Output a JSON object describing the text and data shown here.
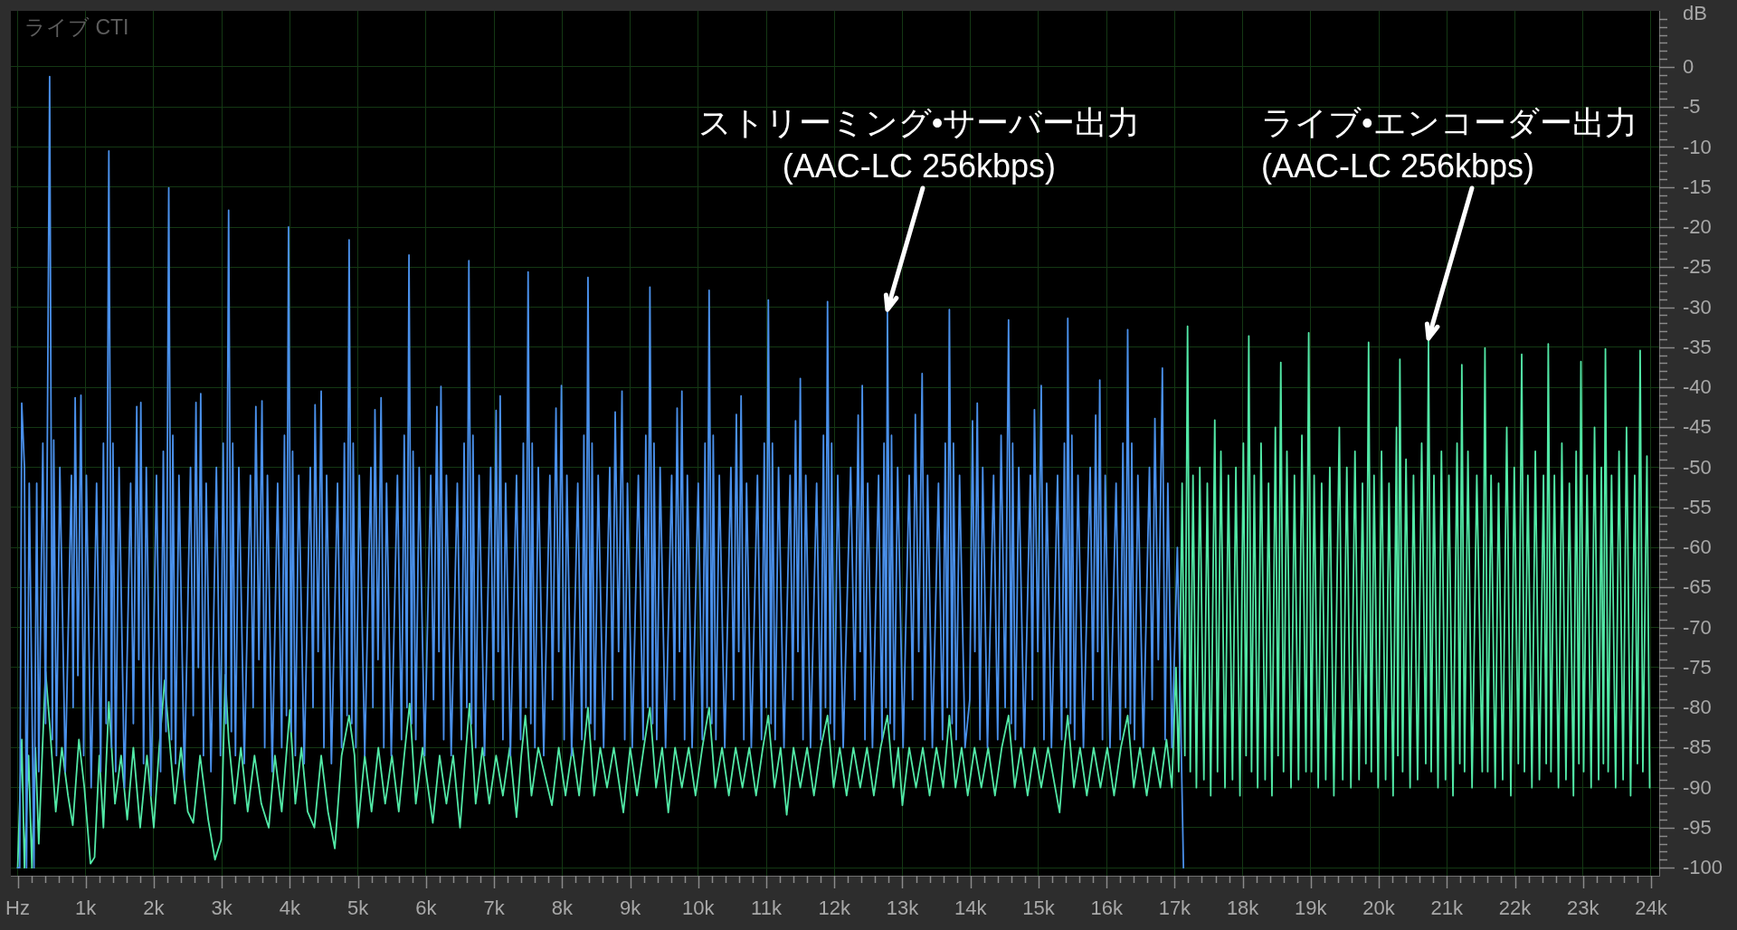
{
  "chart_data": {
    "type": "line",
    "xlim": [
      -100,
      24120
    ],
    "ylim": [
      -101,
      7
    ],
    "xticks": [
      {
        "value": 0,
        "label": "Hz"
      },
      {
        "value": 200,
        "label": null
      },
      {
        "value": 400,
        "label": null
      },
      {
        "value": 600,
        "label": null
      },
      {
        "value": 800,
        "label": null
      },
      {
        "value": 1000,
        "label": "1k"
      },
      {
        "value": 1200,
        "label": null
      },
      {
        "value": 1400,
        "label": null
      },
      {
        "value": 1600,
        "label": null
      },
      {
        "value": 1800,
        "label": null
      },
      {
        "value": 2000,
        "label": "2k"
      },
      {
        "value": 2200,
        "label": null
      },
      {
        "value": 2400,
        "label": null
      },
      {
        "value": 2600,
        "label": null
      },
      {
        "value": 2800,
        "label": null
      },
      {
        "value": 3000,
        "label": "3k"
      },
      {
        "value": 3200,
        "label": null
      },
      {
        "value": 3400,
        "label": null
      },
      {
        "value": 3600,
        "label": null
      },
      {
        "value": 3800,
        "label": null
      },
      {
        "value": 4000,
        "label": "4k"
      },
      {
        "value": 4200,
        "label": null
      },
      {
        "value": 4400,
        "label": null
      },
      {
        "value": 4600,
        "label": null
      },
      {
        "value": 4800,
        "label": null
      },
      {
        "value": 5000,
        "label": "5k"
      },
      {
        "value": 5200,
        "label": null
      },
      {
        "value": 5400,
        "label": null
      },
      {
        "value": 5600,
        "label": null
      },
      {
        "value": 5800,
        "label": null
      },
      {
        "value": 6000,
        "label": "6k"
      },
      {
        "value": 6200,
        "label": null
      },
      {
        "value": 6400,
        "label": null
      },
      {
        "value": 6600,
        "label": null
      },
      {
        "value": 6800,
        "label": null
      },
      {
        "value": 7000,
        "label": "7k"
      },
      {
        "value": 7200,
        "label": null
      },
      {
        "value": 7400,
        "label": null
      },
      {
        "value": 7600,
        "label": null
      },
      {
        "value": 7800,
        "label": null
      },
      {
        "value": 8000,
        "label": "8k"
      },
      {
        "value": 8200,
        "label": null
      },
      {
        "value": 8400,
        "label": null
      },
      {
        "value": 8600,
        "label": null
      },
      {
        "value": 8800,
        "label": null
      },
      {
        "value": 9000,
        "label": "9k"
      },
      {
        "value": 9200,
        "label": null
      },
      {
        "value": 9400,
        "label": null
      },
      {
        "value": 9600,
        "label": null
      },
      {
        "value": 9800,
        "label": null
      },
      {
        "value": 10000,
        "label": "10k"
      },
      {
        "value": 10200,
        "label": null
      },
      {
        "value": 10400,
        "label": null
      },
      {
        "value": 10600,
        "label": null
      },
      {
        "value": 10800,
        "label": null
      },
      {
        "value": 11000,
        "label": "11k"
      },
      {
        "value": 11200,
        "label": null
      },
      {
        "value": 11400,
        "label": null
      },
      {
        "value": 11600,
        "label": null
      },
      {
        "value": 11800,
        "label": null
      },
      {
        "value": 12000,
        "label": "12k"
      },
      {
        "value": 12200,
        "label": null
      },
      {
        "value": 12400,
        "label": null
      },
      {
        "value": 12600,
        "label": null
      },
      {
        "value": 12800,
        "label": null
      },
      {
        "value": 13000,
        "label": "13k"
      },
      {
        "value": 13200,
        "label": null
      },
      {
        "value": 13400,
        "label": null
      },
      {
        "value": 13600,
        "label": null
      },
      {
        "value": 13800,
        "label": null
      },
      {
        "value": 14000,
        "label": "14k"
      },
      {
        "value": 14200,
        "label": null
      },
      {
        "value": 14400,
        "label": null
      },
      {
        "value": 14600,
        "label": null
      },
      {
        "value": 14800,
        "label": null
      },
      {
        "value": 15000,
        "label": "15k"
      },
      {
        "value": 15200,
        "label": null
      },
      {
        "value": 15400,
        "label": null
      },
      {
        "value": 15600,
        "label": null
      },
      {
        "value": 15800,
        "label": null
      },
      {
        "value": 16000,
        "label": "16k"
      },
      {
        "value": 16200,
        "label": null
      },
      {
        "value": 16400,
        "label": null
      },
      {
        "value": 16600,
        "label": null
      },
      {
        "value": 16800,
        "label": null
      },
      {
        "value": 17000,
        "label": "17k"
      },
      {
        "value": 17200,
        "label": null
      },
      {
        "value": 17400,
        "label": null
      },
      {
        "value": 17600,
        "label": null
      },
      {
        "value": 17800,
        "label": null
      },
      {
        "value": 18000,
        "label": "18k"
      },
      {
        "value": 18200,
        "label": null
      },
      {
        "value": 18400,
        "label": null
      },
      {
        "value": 18600,
        "label": null
      },
      {
        "value": 18800,
        "label": null
      },
      {
        "value": 19000,
        "label": "19k"
      },
      {
        "value": 19200,
        "label": null
      },
      {
        "value": 19400,
        "label": null
      },
      {
        "value": 19600,
        "label": null
      },
      {
        "value": 19800,
        "label": null
      },
      {
        "value": 20000,
        "label": "20k"
      },
      {
        "value": 20200,
        "label": null
      },
      {
        "value": 20400,
        "label": null
      },
      {
        "value": 20600,
        "label": null
      },
      {
        "value": 20800,
        "label": null
      },
      {
        "value": 21000,
        "label": "21k"
      },
      {
        "value": 21200,
        "label": null
      },
      {
        "value": 21400,
        "label": null
      },
      {
        "value": 21600,
        "label": null
      },
      {
        "value": 21800,
        "label": null
      },
      {
        "value": 22000,
        "label": "22k"
      },
      {
        "value": 22200,
        "label": null
      },
      {
        "value": 22400,
        "label": null
      },
      {
        "value": 22600,
        "label": null
      },
      {
        "value": 22800,
        "label": null
      },
      {
        "value": 23000,
        "label": "23k"
      },
      {
        "value": 23200,
        "label": null
      },
      {
        "value": 23400,
        "label": null
      },
      {
        "value": 23600,
        "label": null
      },
      {
        "value": 23800,
        "label": null
      },
      {
        "value": 24000,
        "label": "24k"
      }
    ],
    "yticks": [
      {
        "value": 6,
        "label": null
      },
      {
        "value": 5,
        "label": null
      },
      {
        "value": 4,
        "label": null
      },
      {
        "value": 3,
        "label": null
      },
      {
        "value": 2,
        "label": null
      },
      {
        "value": 1,
        "label": null
      },
      0,
      {
        "value": -1,
        "label": null
      },
      {
        "value": -2,
        "label": null
      },
      {
        "value": -3,
        "label": null
      },
      {
        "value": -4,
        "label": null
      },
      -5,
      {
        "value": -6,
        "label": null
      },
      {
        "value": -7,
        "label": null
      },
      {
        "value": -8,
        "label": null
      },
      {
        "value": -9,
        "label": null
      },
      -10,
      {
        "value": -11,
        "label": null
      },
      {
        "value": -12,
        "label": null
      },
      {
        "value": -13,
        "label": null
      },
      {
        "value": -14,
        "label": null
      },
      -15,
      {
        "value": -16,
        "label": null
      },
      {
        "value": -17,
        "label": null
      },
      {
        "value": -18,
        "label": null
      },
      {
        "value": -19,
        "label": null
      },
      -20,
      {
        "value": -21,
        "label": null
      },
      {
        "value": -22,
        "label": null
      },
      {
        "value": -23,
        "label": null
      },
      {
        "value": -24,
        "label": null
      },
      -25,
      {
        "value": -26,
        "label": null
      },
      {
        "value": -27,
        "label": null
      },
      {
        "value": -28,
        "label": null
      },
      {
        "value": -29,
        "label": null
      },
      -30,
      {
        "value": -31,
        "label": null
      },
      {
        "value": -32,
        "label": null
      },
      {
        "value": -33,
        "label": null
      },
      {
        "value": -34,
        "label": null
      },
      -35,
      {
        "value": -36,
        "label": null
      },
      {
        "value": -37,
        "label": null
      },
      {
        "value": -38,
        "label": null
      },
      {
        "value": -39,
        "label": null
      },
      -40,
      {
        "value": -41,
        "label": null
      },
      {
        "value": -42,
        "label": null
      },
      {
        "value": -43,
        "label": null
      },
      {
        "value": -44,
        "label": null
      },
      -45,
      {
        "value": -46,
        "label": null
      },
      {
        "value": -47,
        "label": null
      },
      {
        "value": -48,
        "label": null
      },
      {
        "value": -49,
        "label": null
      },
      -50,
      {
        "value": -51,
        "label": null
      },
      {
        "value": -52,
        "label": null
      },
      {
        "value": -53,
        "label": null
      },
      {
        "value": -54,
        "label": null
      },
      -55,
      {
        "value": -56,
        "label": null
      },
      {
        "value": -57,
        "label": null
      },
      {
        "value": -58,
        "label": null
      },
      {
        "value": -59,
        "label": null
      },
      -60,
      {
        "value": -61,
        "label": null
      },
      {
        "value": -62,
        "label": null
      },
      {
        "value": -63,
        "label": null
      },
      {
        "value": -64,
        "label": null
      },
      -65,
      {
        "value": -66,
        "label": null
      },
      {
        "value": -67,
        "label": null
      },
      {
        "value": -68,
        "label": null
      },
      {
        "value": -69,
        "label": null
      },
      -70,
      {
        "value": -71,
        "label": null
      },
      {
        "value": -72,
        "label": null
      },
      {
        "value": -73,
        "label": null
      },
      {
        "value": -74,
        "label": null
      },
      -75,
      {
        "value": -76,
        "label": null
      },
      {
        "value": -77,
        "label": null
      },
      {
        "value": -78,
        "label": null
      },
      {
        "value": -79,
        "label": null
      },
      -80,
      {
        "value": -81,
        "label": null
      },
      {
        "value": -82,
        "label": null
      },
      {
        "value": -83,
        "label": null
      },
      {
        "value": -84,
        "label": null
      },
      -85,
      {
        "value": -86,
        "label": null
      },
      {
        "value": -87,
        "label": null
      },
      {
        "value": -88,
        "label": null
      },
      {
        "value": -89,
        "label": null
      },
      -90,
      {
        "value": -91,
        "label": null
      },
      {
        "value": -92,
        "label": null
      },
      {
        "value": -93,
        "label": null
      },
      {
        "value": -94,
        "label": null
      },
      -95,
      {
        "value": -96,
        "label": null
      },
      {
        "value": -97,
        "label": null
      },
      {
        "value": -98,
        "label": null
      },
      {
        "value": -99,
        "label": null
      },
      -100
    ],
    "ylabel": "dB",
    "grid": true,
    "annotations": [
      "ライブ CTI",
      {
        "text": "ストリーミング•サーバー出力(AAC-LC 256kbps)",
        "x": 12780,
        "y": -30.3
      },
      {
        "text": "ライブ•エンコーダー出力(AAC-LC 256kbps)",
        "x": 20730,
        "y": -33.9
      }
    ],
    "series": [
      {
        "color": "#4a90ea",
        "x": [
          0,
          30,
          60,
          100,
          130,
          170,
          240,
          280,
          310,
          370,
          410,
          470,
          510,
          530,
          570,
          620,
          700,
          790,
          815,
          845,
          885,
          930,
          970,
          1010,
          1080,
          1160,
          1220,
          1260,
          1300,
          1340,
          1380,
          1400,
          1440,
          1490,
          1570,
          1660,
          1700,
          1750,
          1780,
          1810,
          1850,
          1890,
          1960,
          2040,
          2100,
          2140,
          2180,
          2220,
          2260,
          2280,
          2320,
          2370,
          2450,
          2540,
          2580,
          2620,
          2655,
          2690,
          2730,
          2770,
          2840,
          2920,
          2980,
          3020,
          3060,
          3100,
          3140,
          3160,
          3200,
          3250,
          3330,
          3420,
          3460,
          3500,
          3545,
          3590,
          3630,
          3670,
          3740,
          3820,
          3880,
          3920,
          3950,
          3980,
          4020,
          4040,
          4080,
          4130,
          4210,
          4300,
          4340,
          4370,
          4415,
          4460,
          4500,
          4540,
          4610,
          4700,
          4760,
          4800,
          4840,
          4870,
          4910,
          4930,
          4970,
          5020,
          5100,
          5190,
          5220,
          5250,
          5295,
          5340,
          5380,
          5420,
          5490,
          5580,
          5640,
          5680,
          5720,
          5750,
          5790,
          5810,
          5850,
          5900,
          5980,
          6070,
          6110,
          6160,
          6190,
          6220,
          6260,
          6300,
          6370,
          6460,
          6520,
          6560,
          6600,
          6630,
          6670,
          6690,
          6730,
          6780,
          6860,
          6950,
          6990,
          7030,
          7060,
          7090,
          7130,
          7170,
          7240,
          7330,
          7390,
          7430,
          7470,
          7500,
          7540,
          7560,
          7600,
          7650,
          7730,
          7820,
          7860,
          7910,
          7950,
          7990,
          8030,
          8070,
          8140,
          8230,
          8290,
          8320,
          8350,
          8380,
          8420,
          8440,
          8480,
          8530,
          8610,
          8700,
          8740,
          8780,
          8830,
          8880,
          8920,
          8960,
          9030,
          9120,
          9190,
          9230,
          9260,
          9290,
          9330,
          9350,
          9390,
          9440,
          9520,
          9610,
          9650,
          9690,
          9725,
          9760,
          9800,
          9840,
          9910,
          10000,
          10060,
          10100,
          10130,
          10160,
          10200,
          10220,
          10260,
          10310,
          10390,
          10480,
          10520,
          10560,
          10595,
          10630,
          10670,
          10710,
          10780,
          10870,
          10930,
          10970,
          11000,
          11030,
          11070,
          11090,
          11130,
          11180,
          11260,
          11350,
          11390,
          11430,
          11465,
          11500,
          11540,
          11580,
          11650,
          11740,
          11800,
          11840,
          11870,
          11900,
          11940,
          11960,
          12000,
          12050,
          12130,
          12240,
          12300,
          12350,
          12380,
          12410,
          12450,
          12490,
          12560,
          12650,
          12700,
          12730,
          12760,
          12780,
          12820,
          12840,
          12880,
          12930,
          13010,
          13100,
          13150,
          13190,
          13240,
          13290,
          13330,
          13370,
          13440,
          13530,
          13590,
          13630,
          13660,
          13690,
          13730,
          13750,
          13790,
          13840,
          13920,
          13990,
          14030,
          14065,
          14100,
          14140,
          14180,
          14250,
          14340,
          14400,
          14450,
          14510,
          14560,
          14600,
          14620,
          14660,
          14710,
          14790,
          14880,
          14910,
          14940,
          14990,
          15040,
          15080,
          15120,
          15190,
          15280,
          15340,
          15380,
          15410,
          15430,
          15470,
          15490,
          15530,
          15580,
          15660,
          15760,
          15800,
          15840,
          15870,
          15900,
          15940,
          15980,
          16050,
          16140,
          16200,
          16240,
          16280,
          16310,
          16350,
          16370,
          16410,
          16460,
          16540,
          16630,
          16670,
          16710,
          16760,
          16820,
          16860,
          16900,
          16960,
          17040,
          17090,
          17130
        ],
        "values": [
          -100,
          -100,
          -42,
          -50,
          -100,
          -52,
          -100,
          -52,
          -88,
          -47,
          -82,
          -1.2,
          -84,
          -46.6,
          -86,
          -50,
          -88,
          -51,
          -80,
          -41.3,
          -76,
          -41,
          -86,
          -51,
          -90,
          -52,
          -88,
          -47,
          -82,
          -10.5,
          -85,
          -47,
          -88,
          -50,
          -90,
          -52,
          -82,
          -42.4,
          -74,
          -41.9,
          -87,
          -50,
          -91,
          -51,
          -88,
          -48,
          -83,
          -15.1,
          -84,
          -46,
          -87,
          -51,
          -89,
          -50,
          -81,
          -41.9,
          -75,
          -40.8,
          -86,
          -52,
          -88,
          -50,
          -86,
          -47,
          -82,
          -17.9,
          -83,
          -47,
          -86,
          -50,
          -87,
          -51,
          -80,
          -42.4,
          -74,
          -41.7,
          -85,
          -51,
          -88,
          -52,
          -85,
          -46,
          -81,
          -20,
          -83,
          -48,
          -86,
          -51,
          -87,
          -50,
          -80,
          -42.2,
          -73,
          -40.5,
          -85,
          -51,
          -87,
          -52,
          -85,
          -47,
          -81,
          -21.6,
          -82,
          -47,
          -85,
          -51,
          -86,
          -50,
          -80,
          -42.8,
          -74,
          -41.3,
          -85,
          -52,
          -86,
          -51,
          -84,
          -46,
          -80,
          -23.5,
          -82,
          -48,
          -84,
          -50,
          -86,
          -51,
          -79,
          -42.4,
          -73,
          -39.9,
          -84,
          -51,
          -86,
          -52,
          -84,
          -47,
          -80,
          -24.2,
          -82,
          -46,
          -85,
          -51,
          -86,
          -50,
          -79,
          -42.9,
          -73,
          -41.1,
          -84,
          -52,
          -86,
          -51,
          -84,
          -47,
          -80,
          -25.6,
          -82,
          -47,
          -85,
          -50,
          -86,
          -51,
          -79,
          -42.6,
          -73,
          -39.8,
          -84,
          -51,
          -86,
          -52,
          -84,
          -46,
          -80,
          -26.3,
          -82,
          -47,
          -84,
          -51,
          -85,
          -50,
          -79,
          -43.1,
          -73,
          -40.5,
          -84,
          -52,
          -85,
          -51,
          -84,
          -46,
          -80,
          -27.5,
          -82,
          -47,
          -84,
          -50,
          -85,
          -51,
          -79,
          -42.6,
          -73,
          -40.5,
          -84,
          -51,
          -85,
          -52,
          -84,
          -47,
          -80,
          -27.9,
          -82,
          -46,
          -84,
          -51,
          -85,
          -50,
          -79,
          -43.4,
          -73,
          -41.1,
          -84,
          -52,
          -85,
          -51,
          -84,
          -47,
          -80,
          -29.1,
          -82,
          -47,
          -84,
          -50,
          -85,
          -51,
          -79,
          -44.2,
          -73,
          -38.9,
          -84,
          -51,
          -85,
          -52,
          -84,
          -46,
          -80,
          -29.3,
          -82,
          -47,
          -84,
          -51,
          -85,
          -50,
          -79,
          -43.5,
          -73,
          -39.8,
          -84,
          -52,
          -85,
          -51,
          -84,
          -47,
          -80,
          -30.3,
          -82,
          -46,
          -84,
          -50,
          -85,
          -51,
          -79,
          -43.4,
          -73,
          -38.3,
          -84,
          -51,
          -85,
          -52,
          -84,
          -47,
          -80,
          -30.3,
          -82,
          -47,
          -84,
          -51,
          -85,
          -79,
          -44.2,
          -73,
          -42,
          -84,
          -50,
          -85,
          -51,
          -84,
          -46,
          -80,
          -31.6,
          -82,
          -47,
          -84,
          -50,
          -85,
          -51,
          -79,
          -42.8,
          -73,
          -39.8,
          -84,
          -52,
          -85,
          -51,
          -84,
          -47,
          -80,
          -31.4,
          -82,
          -46,
          -84,
          -51,
          -85,
          -50,
          -79,
          -43.5,
          -73,
          -39.1,
          -84,
          -51,
          -85,
          -52,
          -84,
          -47,
          -80,
          -32.8,
          -82,
          -47,
          -84,
          -51,
          -85,
          -50,
          -79,
          -43.9,
          -74,
          -37.6,
          -84,
          -52,
          -85,
          -60,
          -82,
          -100
        ]
      },
      {
        "color": "#52e8a6",
        "x": [
          0,
          60,
          100,
          160,
          210,
          260,
          310,
          360,
          410,
          470,
          560,
          650,
          740,
          810,
          900,
          980,
          1070,
          1130,
          1200,
          1260,
          1340,
          1430,
          1520,
          1610,
          1700,
          1800,
          1900,
          2000,
          2080,
          2160,
          2220,
          2310,
          2400,
          2500,
          2580,
          2680,
          2800,
          2900,
          2990,
          3050,
          3100,
          3190,
          3280,
          3380,
          3480,
          3580,
          3690,
          3780,
          3880,
          4000,
          4080,
          4170,
          4260,
          4360,
          4460,
          4560,
          4660,
          4760,
          4870,
          4950,
          5000,
          5100,
          5200,
          5300,
          5400,
          5500,
          5600,
          5680,
          5760,
          5850,
          5950,
          6100,
          6200,
          6300,
          6400,
          6500,
          6580,
          6640,
          6730,
          6830,
          6930,
          7030,
          7130,
          7230,
          7330,
          7400,
          7460,
          7550,
          7650,
          7850,
          7950,
          8050,
          8150,
          8250,
          8320,
          8380,
          8470,
          8560,
          8660,
          8760,
          8900,
          9000,
          9100,
          9200,
          9290,
          9380,
          9470,
          9560,
          9660,
          9760,
          9860,
          9960,
          10060,
          10160,
          10250,
          10350,
          10450,
          10550,
          10650,
          10750,
          10850,
          10950,
          11030,
          11120,
          11210,
          11300,
          11400,
          11500,
          11600,
          11700,
          11800,
          11900,
          11990,
          12080,
          12180,
          12280,
          12380,
          12480,
          12580,
          12680,
          12780,
          12870,
          12940,
          13000,
          13100,
          13200,
          13300,
          13400,
          13500,
          13600,
          13690,
          13780,
          13870,
          13960,
          14060,
          14160,
          14260,
          14360,
          14460,
          14560,
          14650,
          14740,
          14840,
          14940,
          15040,
          15140,
          15310,
          15380,
          15430,
          15520,
          15610,
          15710,
          15810,
          15910,
          16010,
          16110,
          16210,
          16310,
          16400,
          16490,
          16590,
          16690,
          16790,
          16880,
          16960,
          17020,
          17060,
          17110,
          17150,
          17190,
          17230,
          17270,
          17320,
          17370,
          17430,
          17480,
          17530,
          17590,
          17630,
          17680,
          17740,
          17790,
          17850,
          17900,
          17960,
          18010,
          18050,
          18090,
          18130,
          18170,
          18220,
          18270,
          18330,
          18380,
          18430,
          18480,
          18520,
          18560,
          18600,
          18650,
          18710,
          18760,
          18820,
          18870,
          18930,
          18970,
          19010,
          19050,
          19110,
          19160,
          19220,
          19280,
          19340,
          19420,
          19470,
          19530,
          19590,
          19650,
          19710,
          19760,
          19810,
          19850,
          19890,
          19930,
          19990,
          20040,
          20100,
          20150,
          20210,
          20260,
          20280,
          20310,
          20350,
          20400,
          20460,
          20510,
          20570,
          20630,
          20690,
          20730,
          20770,
          20810,
          20870,
          20920,
          20980,
          21030,
          21090,
          21150,
          21190,
          21220,
          21260,
          21310,
          21370,
          21440,
          21520,
          21560,
          21600,
          21650,
          21710,
          21760,
          21820,
          21880,
          21940,
          21990,
          22050,
          22100,
          22140,
          22190,
          22250,
          22300,
          22360,
          22420,
          22460,
          22490,
          22530,
          22580,
          22640,
          22690,
          22750,
          22800,
          22860,
          22900,
          22940,
          22970,
          23010,
          23060,
          23120,
          23170,
          23230,
          23270,
          23300,
          23330,
          23370,
          23420,
          23480,
          23530,
          23590,
          23640,
          23700,
          23760,
          23800,
          23840,
          23880,
          23940,
          23980
        ],
        "values": [
          -100,
          -84,
          -100,
          -86,
          -100,
          -85,
          -97,
          -86,
          -75.5,
          -82,
          -93,
          -85,
          -91,
          -94.7,
          -84,
          -90,
          -99.5,
          -98.7,
          -86,
          -95,
          -79.3,
          -92,
          -86,
          -94,
          -85,
          -95,
          -86,
          -95,
          -85,
          -76.6,
          -83,
          -92,
          -85,
          -93,
          -94.4,
          -86,
          -94,
          -99,
          -96.5,
          -75.9,
          -84,
          -92,
          -85,
          -93,
          -86,
          -92,
          -95,
          -86,
          -93,
          -80.3,
          -92,
          -85,
          -93,
          -95,
          -86,
          -93,
          -97.6,
          -86,
          -81,
          -86,
          -95,
          -86,
          -93,
          -85,
          -92,
          -86,
          -93,
          -86,
          -79.5,
          -92,
          -85,
          -94.4,
          -86,
          -92,
          -86,
          -95,
          -86,
          -79.5,
          -92,
          -85,
          -92,
          -86,
          -91,
          -85,
          -93.7,
          -86,
          -81,
          -91,
          -85,
          -92.2,
          -85,
          -91,
          -85,
          -91,
          -85,
          -80,
          -91,
          -85,
          -90,
          -85,
          -93.1,
          -85,
          -91,
          -85,
          -80,
          -90,
          -85,
          -93.1,
          -85,
          -90,
          -85,
          -91,
          -85,
          -80,
          -90,
          -85,
          -91,
          -85,
          -90,
          -85,
          -91,
          -85,
          -81,
          -90,
          -85,
          -93.4,
          -85,
          -90,
          -85,
          -91,
          -85,
          -81,
          -90,
          -85,
          -91,
          -85,
          -90,
          -85,
          -91,
          -85,
          -81,
          -90,
          -85,
          -92.2,
          -85,
          -90,
          -85,
          -91,
          -85,
          -90,
          -81,
          -90,
          -85,
          -91,
          -85,
          -90,
          -85,
          -91,
          -85,
          -81,
          -90,
          -85,
          -91,
          -85,
          -90,
          -85,
          -93.1,
          -85,
          -81,
          -90,
          -85,
          -91,
          -85,
          -90,
          -85,
          -91,
          -85,
          -81,
          -90,
          -85,
          -91,
          -85,
          -90,
          -84,
          -90,
          -75,
          -88,
          -52,
          -86,
          -32.4,
          -88,
          -51,
          -90,
          -50,
          -89,
          -52,
          -91,
          -44.1,
          -88,
          -48,
          -90,
          -51,
          -89,
          -50,
          -91,
          -47,
          -86,
          -33.6,
          -88,
          -51,
          -90,
          -47,
          -89,
          -52,
          -91,
          -45,
          -86,
          -36.9,
          -88,
          -48,
          -90,
          -51,
          -89,
          -46,
          -88,
          -33.2,
          -88,
          -51,
          -90,
          -52,
          -89,
          -50,
          -91,
          -45,
          -89,
          -50,
          -90,
          -48,
          -89,
          -52,
          -87,
          -34.4,
          -88,
          -51,
          -90,
          -48,
          -89,
          -52,
          -91,
          -45,
          -86,
          -36.5,
          -88,
          -49,
          -90,
          -51,
          -89,
          -47,
          -87,
          -33.9,
          -88,
          -51,
          -90,
          -48,
          -89,
          -51,
          -91,
          -47,
          -87,
          -37.2,
          -88,
          -48,
          -90,
          -51,
          -88,
          -35.1,
          -88,
          -51,
          -90,
          -52,
          -89,
          -45,
          -91,
          -50,
          -87,
          -35.9,
          -88,
          -51,
          -90,
          -48,
          -89,
          -51,
          -87,
          -34.6,
          -88,
          -51,
          -90,
          -47,
          -89,
          -52,
          -91,
          -48,
          -87,
          -36.8,
          -88,
          -51,
          -90,
          -45,
          -89,
          -50,
          -87,
          -35.2,
          -88,
          -51,
          -90,
          -48,
          -89,
          -45,
          -91,
          -51,
          -87,
          -35.4,
          -88,
          -48.6,
          -90
        ]
      }
    ]
  }
}
